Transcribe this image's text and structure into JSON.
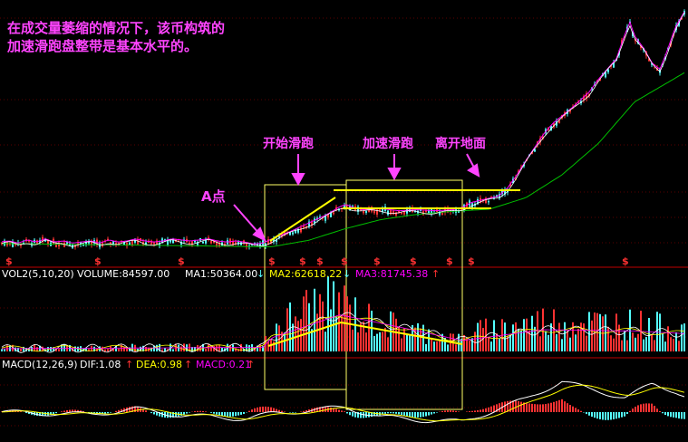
{
  "annotation": {
    "line1": "在成交量萎缩的情况下，该币构筑的",
    "line2": "加速滑跑盘整带是基本水平的。",
    "label_a": "A点",
    "label_start": "开始滑跑",
    "label_accel": "加速滑跑",
    "label_takeoff": "离开地面"
  },
  "volume_header": {
    "name": "VOL2(5,10,20)",
    "volume": "VOLUME:84597.00",
    "ma1": "MA1:50364.00",
    "ma2": "MA2:62618.22",
    "ma3": "MA3:81745.38"
  },
  "macd_header": {
    "name": "MACD(12,26,9)",
    "dif": "DIF:1.08",
    "dea": "DEA:0.98",
    "macd": "MACD:0.21"
  },
  "marker_symbol": "$",
  "colors": {
    "up": "#ff3232",
    "down": "#54ffff",
    "ma_white": "#ffffff",
    "ma_yellow": "#ffff00",
    "ma_magenta": "#ff00ff",
    "ma_green": "#00c000",
    "annotation": "#ff44ff",
    "box": "#ffff66"
  },
  "chart_data": {
    "type": "candlestick",
    "price_anchors": [
      [
        0,
        14
      ],
      [
        10,
        15
      ],
      [
        20,
        13
      ],
      [
        30,
        16
      ],
      [
        40,
        14
      ],
      [
        50,
        17
      ],
      [
        60,
        14
      ],
      [
        70,
        15
      ],
      [
        80,
        13
      ],
      [
        90,
        14
      ],
      [
        100,
        15
      ],
      [
        110,
        13
      ],
      [
        120,
        16
      ],
      [
        130,
        14
      ],
      [
        140,
        15
      ],
      [
        150,
        17
      ],
      [
        160,
        15
      ],
      [
        170,
        14
      ],
      [
        180,
        15
      ],
      [
        190,
        17
      ],
      [
        200,
        16
      ],
      [
        210,
        15
      ],
      [
        220,
        16
      ],
      [
        230,
        17
      ],
      [
        240,
        15
      ],
      [
        250,
        14
      ],
      [
        260,
        15
      ],
      [
        270,
        14
      ],
      [
        280,
        12
      ],
      [
        290,
        13
      ],
      [
        300,
        17
      ],
      [
        320,
        24
      ],
      [
        340,
        32
      ],
      [
        360,
        40
      ],
      [
        375,
        48
      ],
      [
        382,
        50
      ],
      [
        390,
        47
      ],
      [
        400,
        45
      ],
      [
        420,
        46
      ],
      [
        440,
        44
      ],
      [
        460,
        45
      ],
      [
        480,
        44
      ],
      [
        500,
        45
      ],
      [
        510,
        47
      ],
      [
        520,
        52
      ],
      [
        535,
        55
      ],
      [
        550,
        58
      ],
      [
        560,
        66
      ],
      [
        570,
        78
      ],
      [
        580,
        92
      ],
      [
        590,
        105
      ],
      [
        600,
        118
      ],
      [
        610,
        128
      ],
      [
        620,
        135
      ],
      [
        630,
        142
      ],
      [
        640,
        150
      ],
      [
        650,
        158
      ],
      [
        660,
        170
      ],
      [
        670,
        180
      ],
      [
        680,
        190
      ],
      [
        690,
        215
      ],
      [
        695,
        225
      ],
      [
        700,
        212
      ],
      [
        710,
        200
      ],
      [
        720,
        185
      ],
      [
        728,
        180
      ],
      [
        735,
        195
      ],
      [
        745,
        220
      ],
      [
        755,
        235
      ]
    ],
    "ma_slow_anchors": [
      [
        0,
        14
      ],
      [
        100,
        13
      ],
      [
        200,
        12
      ],
      [
        280,
        11
      ],
      [
        300,
        11
      ],
      [
        340,
        17
      ],
      [
        380,
        28
      ],
      [
        420,
        37
      ],
      [
        460,
        42
      ],
      [
        500,
        45
      ],
      [
        540,
        47
      ],
      [
        580,
        58
      ],
      [
        620,
        80
      ],
      [
        660,
        110
      ],
      [
        700,
        150
      ],
      [
        759,
        180
      ]
    ],
    "volume_anchors": [
      [
        0,
        3
      ],
      [
        290,
        4
      ],
      [
        300,
        16
      ],
      [
        340,
        32
      ],
      [
        375,
        36
      ],
      [
        400,
        24
      ],
      [
        440,
        18
      ],
      [
        480,
        12
      ],
      [
        510,
        8
      ],
      [
        520,
        14
      ],
      [
        600,
        22
      ],
      [
        700,
        20
      ],
      [
        759,
        16
      ]
    ],
    "volume_ma_anchors": [
      [
        0,
        2
      ],
      [
        290,
        3
      ],
      [
        300,
        10
      ],
      [
        375,
        27
      ],
      [
        440,
        18
      ],
      [
        510,
        8
      ],
      [
        600,
        16
      ],
      [
        700,
        15
      ],
      [
        759,
        13
      ]
    ],
    "macd_dif_anchors": [
      [
        0,
        0
      ],
      [
        100,
        -3
      ],
      [
        150,
        4
      ],
      [
        200,
        -4
      ],
      [
        270,
        -8
      ],
      [
        300,
        -2
      ],
      [
        380,
        6
      ],
      [
        420,
        -6
      ],
      [
        470,
        -10
      ],
      [
        510,
        -12
      ],
      [
        550,
        4
      ],
      [
        580,
        16
      ],
      [
        620,
        38
      ],
      [
        650,
        28
      ],
      [
        690,
        18
      ],
      [
        720,
        34
      ],
      [
        745,
        26
      ],
      [
        759,
        18
      ]
    ],
    "marker_x": [
      10,
      108,
      200,
      300,
      334,
      353,
      380,
      416,
      456,
      496,
      520,
      690
    ],
    "volume_peak_label": "",
    "xlabel": "",
    "ylabel": ""
  }
}
